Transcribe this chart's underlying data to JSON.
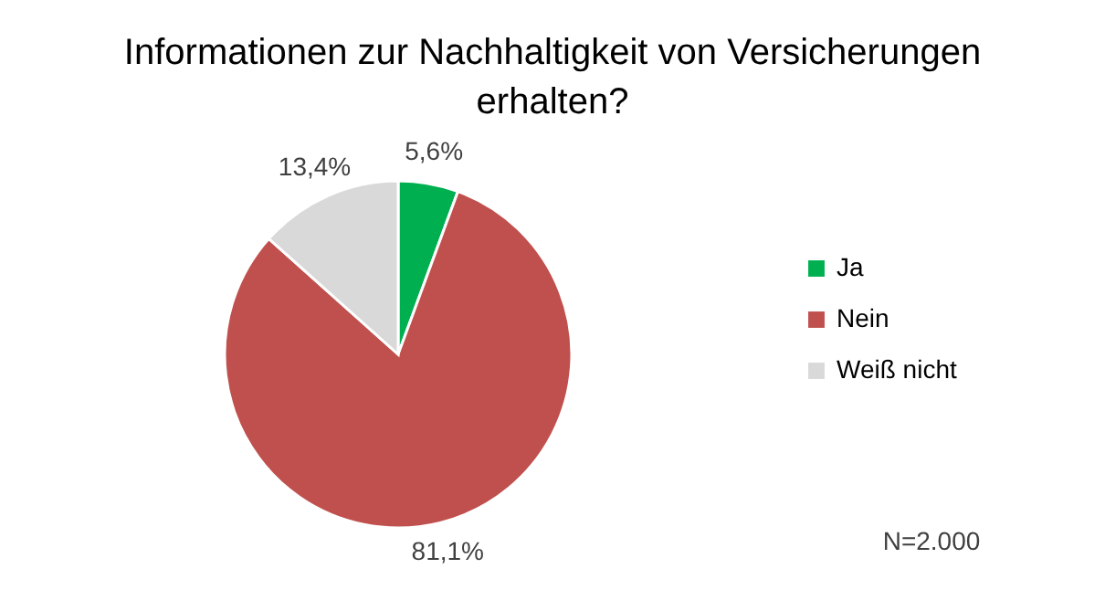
{
  "chart_data": {
    "type": "pie",
    "title": "Informationen zur Nachhaltigkeit von Versicherungen erhalten?",
    "categories": [
      "Ja",
      "Nein",
      "Weiß nicht"
    ],
    "values": [
      5.6,
      81.1,
      13.4
    ],
    "value_labels": [
      "5,6%",
      "81,1%",
      "13,4%"
    ],
    "colors": [
      "#00b050",
      "#c0504d",
      "#d9d9d9"
    ],
    "legend": "right",
    "annotations": [
      "N=2.000"
    ]
  }
}
